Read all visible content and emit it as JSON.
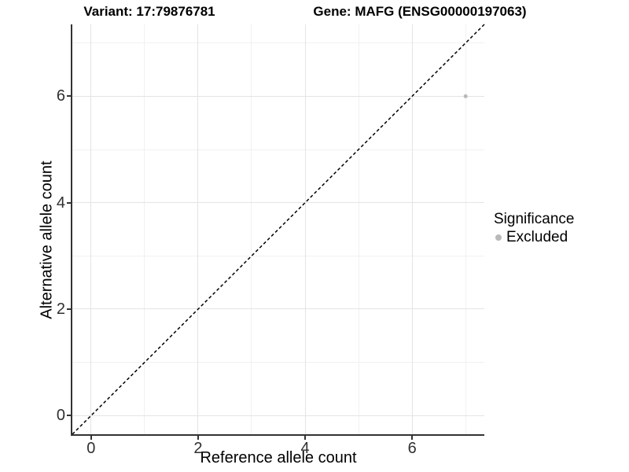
{
  "header": {
    "variant_title": "Variant: 17:79876781",
    "gene_title": "Gene: MAFG (ENSG00000197063)"
  },
  "chart_data": {
    "type": "scatter",
    "title_left": "Variant: 17:79876781",
    "title_right": "Gene: MAFG (ENSG00000197063)",
    "xlabel": "Reference allele count",
    "ylabel": "Alternative allele count",
    "xlim": [
      -0.35,
      7.35
    ],
    "ylim": [
      -0.35,
      7.35
    ],
    "x_ticks": [
      0,
      2,
      4,
      6
    ],
    "y_ticks": [
      0,
      2,
      4,
      6
    ],
    "x_minor_gridlines": [
      1,
      3,
      5,
      7
    ],
    "y_minor_gridlines": [
      1,
      3,
      5,
      7
    ],
    "grid": true,
    "reference_line": {
      "kind": "identity",
      "style": "dashed",
      "color": "#000000"
    },
    "points": [
      {
        "x": 7,
        "y": 6,
        "series": "Excluded"
      }
    ],
    "legend": {
      "title": "Significance",
      "position": "right",
      "entries": [
        {
          "label": "Excluded",
          "color": "#b9b9b9"
        }
      ]
    }
  },
  "colors": {
    "point": "#b9b9b9",
    "grid_major": "#e4e4e4",
    "grid_minor": "#f1f1f1",
    "axis_line": "#333333",
    "tick_label": "#303030",
    "background": "#ffffff"
  }
}
